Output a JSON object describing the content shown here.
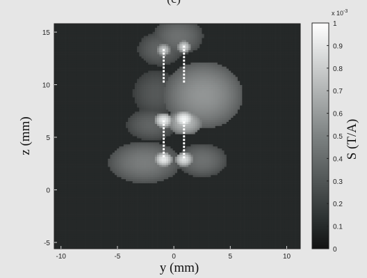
{
  "figure": {
    "top_label": "(c)"
  },
  "chart_data": {
    "type": "heatmap",
    "xlabel": "y (mm)",
    "ylabel": "z (mm)",
    "xlim": [
      -10.6,
      11.2
    ],
    "ylim": [
      -5.6,
      15.8
    ],
    "xticks": [
      -10,
      -5,
      0,
      5,
      10
    ],
    "yticks": [
      -5,
      0,
      5,
      10,
      15
    ],
    "colorbar": {
      "label": "S (T/A)",
      "multiplier": "x 10",
      "exponent": "-3",
      "range": [
        0,
        1
      ],
      "ticks": [
        "0",
        "0.1",
        "0.2",
        "0.3",
        "0.4",
        "0.5",
        "0.6",
        "0.7",
        "0.8",
        "0.9",
        "1"
      ]
    },
    "background_value": 0.1,
    "blobs": [
      {
        "y": 0.4,
        "z": 14.6,
        "ry": 2.2,
        "rz": 1.8,
        "v": 0.4
      },
      {
        "y": -1.2,
        "z": 13.4,
        "ry": 2.0,
        "rz": 1.6,
        "v": 0.35
      },
      {
        "y": 2.6,
        "z": 9.0,
        "ry": 3.5,
        "rz": 3.2,
        "v": 0.55
      },
      {
        "y": -1.6,
        "z": 9.2,
        "ry": 2.0,
        "rz": 2.2,
        "v": 0.3
      },
      {
        "y": -2.0,
        "z": 6.2,
        "ry": 2.2,
        "rz": 1.5,
        "v": 0.35
      },
      {
        "y": 1.0,
        "z": 6.4,
        "ry": 1.6,
        "rz": 1.2,
        "v": 0.7
      },
      {
        "y": -2.6,
        "z": 2.6,
        "ry": 3.2,
        "rz": 2.0,
        "v": 0.45
      },
      {
        "y": 2.5,
        "z": 2.8,
        "ry": 2.2,
        "rz": 1.6,
        "v": 0.4
      },
      {
        "y": -0.9,
        "z": 6.6,
        "ry": 0.8,
        "rz": 0.7,
        "v": 0.9
      },
      {
        "y": 0.9,
        "z": 6.7,
        "ry": 0.9,
        "rz": 0.8,
        "v": 0.95
      },
      {
        "y": -0.9,
        "z": 2.9,
        "ry": 0.8,
        "rz": 0.7,
        "v": 0.9
      },
      {
        "y": 0.9,
        "z": 2.9,
        "ry": 0.8,
        "rz": 0.7,
        "v": 0.85
      },
      {
        "y": -0.9,
        "z": 13.3,
        "ry": 0.6,
        "rz": 0.6,
        "v": 0.75
      },
      {
        "y": 0.9,
        "z": 13.6,
        "ry": 0.6,
        "rz": 0.6,
        "v": 0.8
      }
    ],
    "conductors": [
      {
        "y": -0.9,
        "z_from": 10.2,
        "z_to": 13.4
      },
      {
        "y": 0.9,
        "z_from": 10.2,
        "z_to": 13.8
      },
      {
        "y": -0.9,
        "z_from": 3.1,
        "z_to": 6.6
      },
      {
        "y": 0.9,
        "z_from": 3.0,
        "z_to": 6.6
      }
    ]
  }
}
